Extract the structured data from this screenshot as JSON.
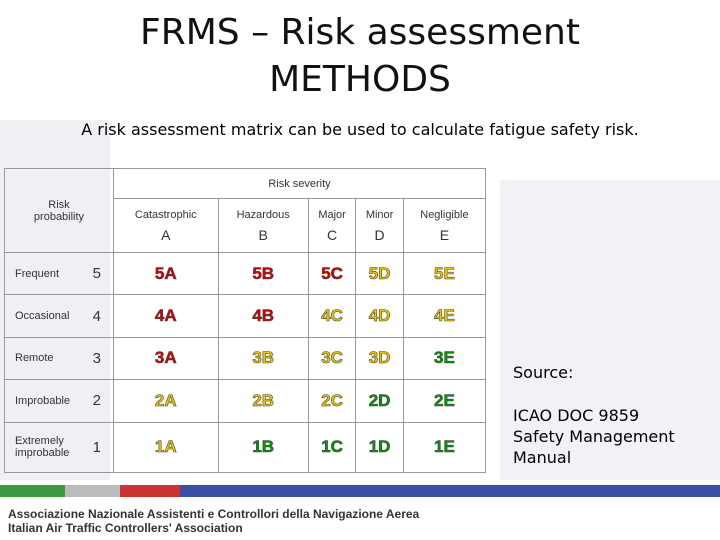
{
  "title": {
    "lines": [
      "FRMS – Risk assessment",
      "METHODS"
    ]
  },
  "subtitle": "A risk assessment matrix can be used to calculate fatigue safety risk.",
  "matrix": {
    "probability_header": "Risk probability",
    "severity_header": "Risk severity",
    "severities": [
      {
        "name": "Catastrophic",
        "letter": "A"
      },
      {
        "name": "Hazardous",
        "letter": "B"
      },
      {
        "name": "Major",
        "letter": "C"
      },
      {
        "name": "Minor",
        "letter": "D"
      },
      {
        "name": "Negligible",
        "letter": "E"
      }
    ],
    "rows": [
      {
        "name": "Frequent",
        "number": "5",
        "cells": [
          "5A",
          "5B",
          "5C",
          "5D",
          "5E"
        ],
        "colors": [
          "#d40000",
          "#d40000",
          "#d40000",
          "#f0c800",
          "#f0c800"
        ]
      },
      {
        "name": "Occasional",
        "number": "4",
        "cells": [
          "4A",
          "4B",
          "4C",
          "4D",
          "4E"
        ],
        "colors": [
          "#d40000",
          "#d40000",
          "#f0c800",
          "#f0c800",
          "#f0c800"
        ]
      },
      {
        "name": "Remote",
        "number": "3",
        "cells": [
          "3A",
          "3B",
          "3C",
          "3D",
          "3E"
        ],
        "colors": [
          "#d40000",
          "#f0c800",
          "#f0c800",
          "#f0c800",
          "#009a00"
        ]
      },
      {
        "name": "Improbable",
        "number": "2",
        "cells": [
          "2A",
          "2B",
          "2C",
          "2D",
          "2E"
        ],
        "colors": [
          "#f0c800",
          "#f0c800",
          "#f0c800",
          "#009a00",
          "#009a00"
        ]
      },
      {
        "name": "Extremely improbable",
        "number": "1",
        "cells": [
          "1A",
          "1B",
          "1C",
          "1D",
          "1E"
        ],
        "colors": [
          "#f0c800",
          "#009a00",
          "#009a00",
          "#009a00",
          "#009a00"
        ]
      }
    ]
  },
  "source": {
    "label": "Source:",
    "lines": [
      "ICAO DOC 9859",
      "Safety Management",
      "Manual"
    ]
  },
  "footer": {
    "lines": [
      "Associazione Nazionale Assistenti e Controllori della Navigazione Aerea",
      "Italian Air Traffic Controllers' Association"
    ]
  }
}
